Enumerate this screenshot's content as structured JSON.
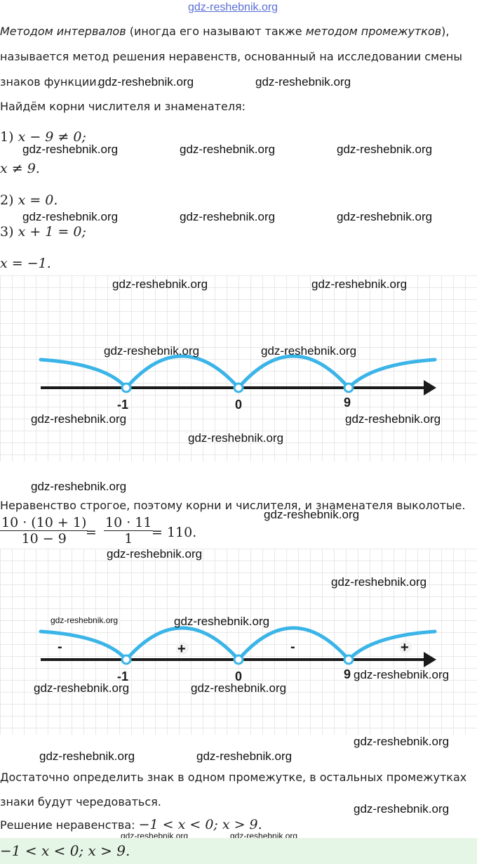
{
  "watermark": "gdz-reshebnik.org",
  "intro": {
    "term1": "Методом интервалов",
    "mid": " (иногда его называют также ",
    "term2": "методом промежутков",
    "end": "),",
    "line2": "называется метод решения неравенств, основанный на исследовании смены",
    "line3": "знаков функции."
  },
  "find_roots": "Найдём корни числителя и знаменателя:",
  "steps": [
    {
      "label": "1)",
      "expr": "x − 9 ≠ 0;"
    },
    {
      "label": "",
      "expr": "x ≠ 9."
    },
    {
      "label": "2)",
      "expr": "x = 0."
    },
    {
      "label": "3)",
      "expr": "x + 1 = 0;"
    },
    {
      "label": "",
      "expr": "x = −1."
    }
  ],
  "axis1": {
    "ticks": [
      "-1",
      "0",
      "9"
    ]
  },
  "strict_note": "Неравенство строгое, поэтому корни и числителя, и знаменателя выколотые.",
  "calc": {
    "num1": "10 · (10 + 1)",
    "den1": "10 − 9",
    "eq": "=",
    "num2": "10 · 11",
    "den2": "1",
    "result": "= 110."
  },
  "axis2": {
    "ticks": [
      "-1",
      "0",
      "9"
    ],
    "signs": [
      "-",
      "+",
      "-",
      "+"
    ]
  },
  "conclusion": {
    "line1": "Достаточно определить знак в одном промежутке, в остальных промежутках",
    "line2": "знаки будут чередоваться."
  },
  "solution_label": "Решение неравенства: ",
  "solution_expr": "−1 < x < 0; x > 9.",
  "answer_expr": "−1 < x < 0; x > 9.",
  "colors": {
    "arc": "#3bb4e8",
    "axis": "#1a1a1a",
    "answer_bg": "#e6f6e6",
    "grid": "#e8e8e8"
  }
}
